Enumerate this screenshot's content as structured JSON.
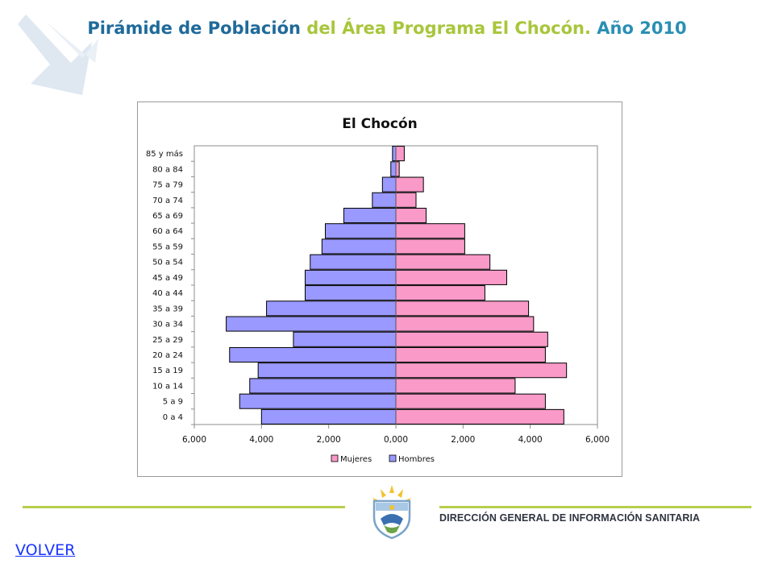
{
  "slide": {
    "title_part1": "Pirámide de Población ",
    "title_part2": "del Área Programa El Chocón.",
    "title_part3": " Año 2010",
    "footer_org": "DIRECCIÓN GENERAL DE INFORMACIÓN SANITARIA",
    "volver": "VOLVER"
  },
  "colors": {
    "title_blue": "#1f6a9a",
    "title_green": "#a8c63b",
    "mujeres": "#f99ac8",
    "hombres": "#9999ff",
    "footer_line": "#b5cf4a",
    "link": "#1a35ff"
  },
  "chart_data": {
    "type": "bar",
    "orientation": "horizontal",
    "layout": "population-pyramid",
    "title": "El Chocón",
    "categories": [
      "0 a 4",
      "5 a 9",
      "10 a 14",
      "15 a 19",
      "20 a 24",
      "25 a 29",
      "30 a 34",
      "35 a 39",
      "40 a 44",
      "45 a 49",
      "50 a 54",
      "55 a 59",
      "60 a 64",
      "65 a 69",
      "70 a 74",
      "75 a 79",
      "80 a 84",
      "85 y más"
    ],
    "series": [
      {
        "name": "Mujeres",
        "color": "#f99ac8",
        "side": "right",
        "values": [
          5000,
          4450,
          3550,
          5080,
          4450,
          4520,
          4100,
          3950,
          2650,
          3300,
          2800,
          2050,
          2050,
          900,
          600,
          820,
          100,
          250
        ]
      },
      {
        "name": "Hombres",
        "color": "#9999ff",
        "side": "left",
        "values": [
          4000,
          4650,
          4350,
          4100,
          4950,
          3050,
          5050,
          3850,
          2700,
          2700,
          2550,
          2200,
          2100,
          1550,
          700,
          400,
          150,
          100
        ]
      }
    ],
    "xlim": [
      -6000,
      6000
    ],
    "xticks": [
      -6000,
      -4000,
      -2000,
      0,
      2000,
      4000,
      6000
    ],
    "xtick_labels": [
      "6,000",
      "4,000",
      "2,000",
      "0,000",
      "2,000",
      "4,000",
      "6,000"
    ],
    "grid": false,
    "legend": {
      "position": "bottom",
      "entries": [
        "Mujeres",
        "Hombres"
      ]
    }
  }
}
